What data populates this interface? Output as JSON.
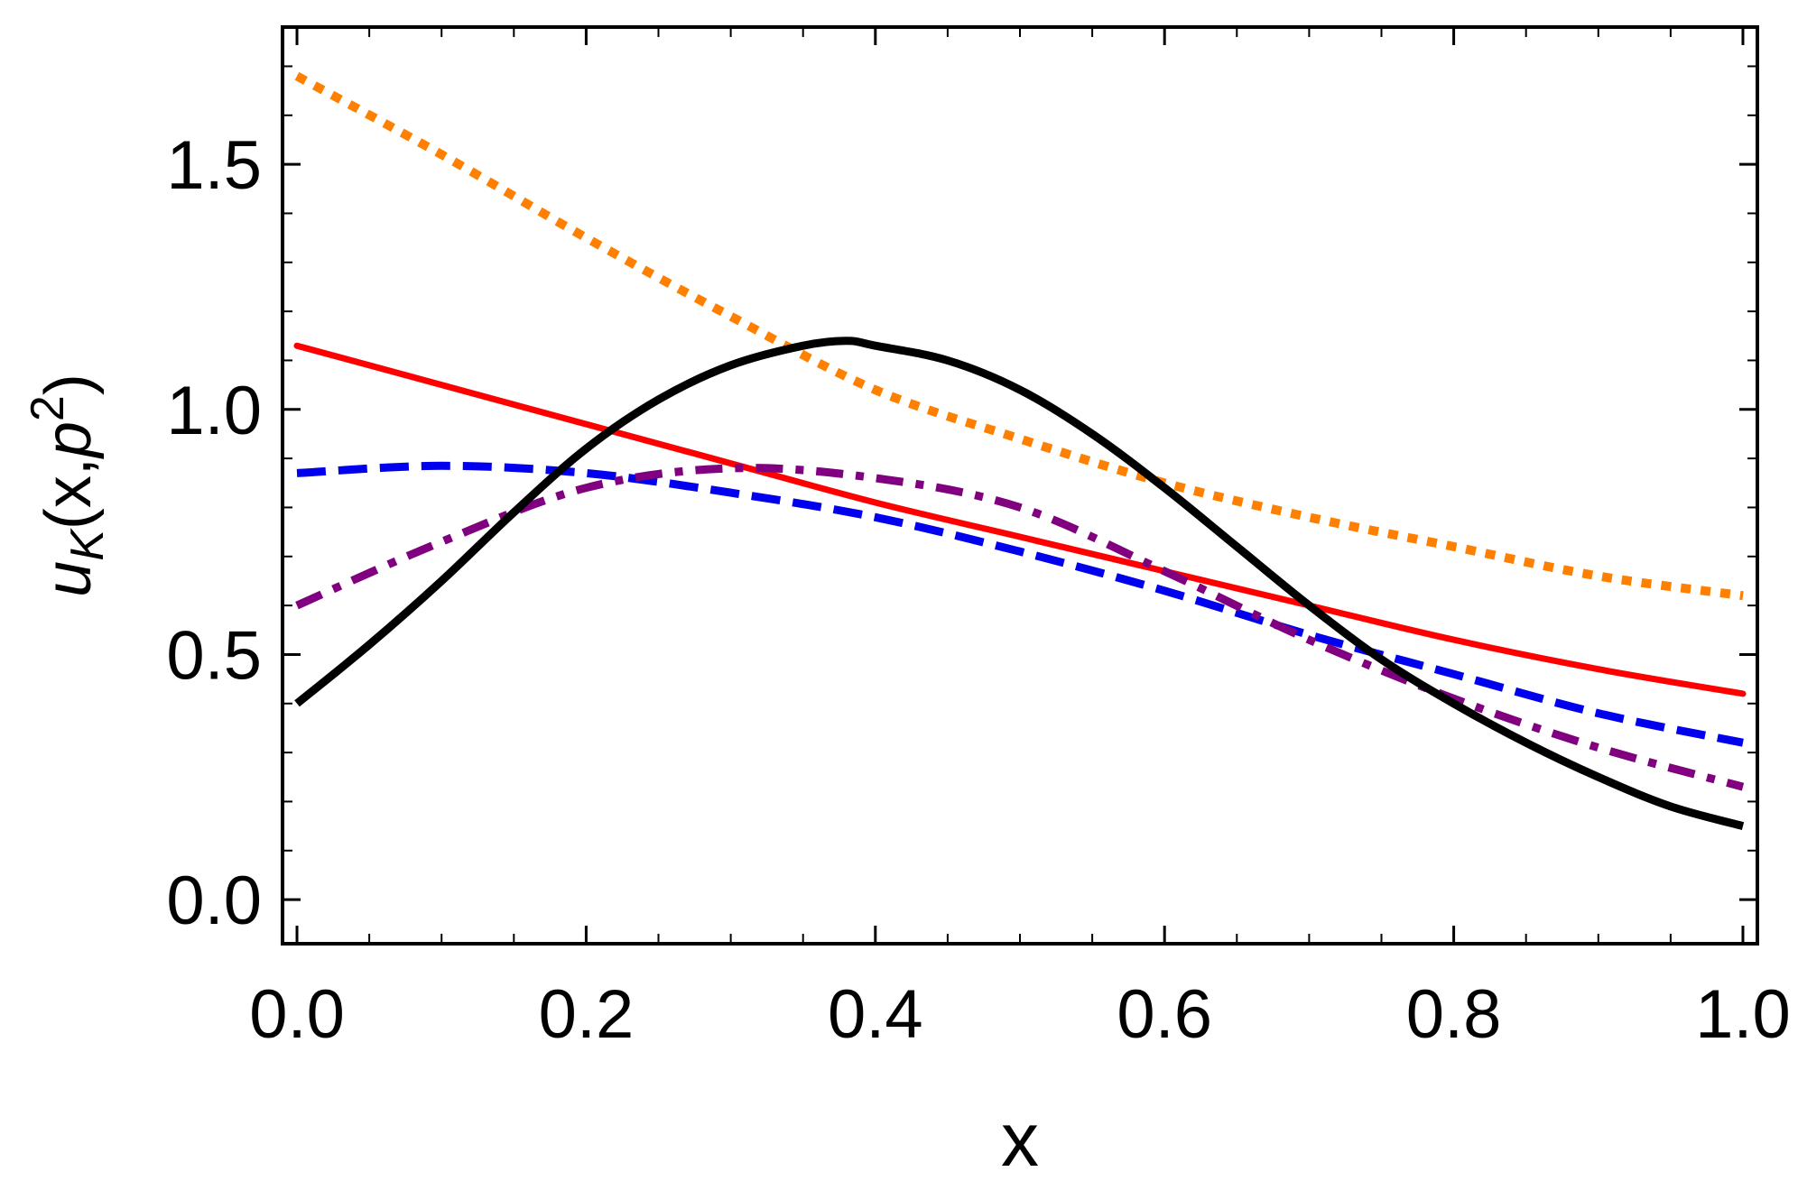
{
  "chart_data": {
    "type": "line",
    "title": "",
    "xlabel": "x",
    "ylabel": {
      "base": "u",
      "subscript": "K",
      "args_open": "(x,",
      "p": "p",
      "superscript": "2",
      "args_close": ")"
    },
    "xlim": [
      -0.01,
      1.01
    ],
    "ylim": [
      -0.09,
      1.78
    ],
    "x_ticks": [
      0.0,
      0.2,
      0.4,
      0.6,
      0.8,
      1.0
    ],
    "x_tick_labels": [
      "0.0",
      "0.2",
      "0.4",
      "0.6",
      "0.8",
      "1.0"
    ],
    "x_minor_ticks": [
      0.05,
      0.1,
      0.15,
      0.25,
      0.3,
      0.35,
      0.45,
      0.5,
      0.55,
      0.65,
      0.7,
      0.75,
      0.85,
      0.9,
      0.95
    ],
    "y_ticks": [
      0.0,
      0.5,
      1.0,
      1.5
    ],
    "y_tick_labels": [
      "0.0",
      "0.5",
      "1.0",
      "1.5"
    ],
    "y_minor_ticks": [
      0.1,
      0.2,
      0.3,
      0.4,
      0.6,
      0.7,
      0.8,
      0.9,
      1.1,
      1.2,
      1.3,
      1.4,
      1.6,
      1.7
    ],
    "grid": false,
    "series": [
      {
        "color": "#ff8000",
        "style": "dotted",
        "x": [
          0.0,
          0.1,
          0.2,
          0.3,
          0.4,
          0.5,
          0.6,
          0.7,
          0.8,
          0.9,
          1.0
        ],
        "y": [
          1.68,
          1.52,
          1.35,
          1.19,
          1.04,
          0.94,
          0.85,
          0.78,
          0.72,
          0.66,
          0.62
        ]
      },
      {
        "color": "#ff0000",
        "style": "solid",
        "x": [
          0.0,
          0.1,
          0.2,
          0.3,
          0.4,
          0.5,
          0.6,
          0.7,
          0.8,
          0.9,
          1.0
        ],
        "y": [
          1.13,
          1.05,
          0.97,
          0.89,
          0.81,
          0.74,
          0.67,
          0.6,
          0.53,
          0.47,
          0.42
        ]
      },
      {
        "color": "#0000ee",
        "style": "dashed",
        "x": [
          0.0,
          0.1,
          0.2,
          0.3,
          0.4,
          0.5,
          0.6,
          0.7,
          0.8,
          0.9,
          1.0
        ],
        "y": [
          0.87,
          0.885,
          0.87,
          0.83,
          0.78,
          0.71,
          0.63,
          0.54,
          0.46,
          0.38,
          0.32
        ]
      },
      {
        "color": "#800080",
        "style": "dashdot",
        "x": [
          0.0,
          0.1,
          0.2,
          0.3,
          0.4,
          0.5,
          0.6,
          0.7,
          0.8,
          0.9,
          1.0
        ],
        "y": [
          0.6,
          0.73,
          0.84,
          0.88,
          0.86,
          0.8,
          0.67,
          0.53,
          0.41,
          0.31,
          0.23
        ]
      },
      {
        "color": "#000000",
        "style": "solid-thick",
        "x": [
          0.0,
          0.05,
          0.1,
          0.15,
          0.2,
          0.25,
          0.3,
          0.35,
          0.38,
          0.4,
          0.45,
          0.5,
          0.55,
          0.6,
          0.65,
          0.7,
          0.75,
          0.8,
          0.85,
          0.9,
          0.95,
          1.0
        ],
        "y": [
          0.4,
          0.52,
          0.65,
          0.79,
          0.92,
          1.02,
          1.09,
          1.13,
          1.14,
          1.13,
          1.1,
          1.04,
          0.95,
          0.84,
          0.72,
          0.6,
          0.49,
          0.4,
          0.32,
          0.25,
          0.19,
          0.15
        ]
      }
    ]
  }
}
